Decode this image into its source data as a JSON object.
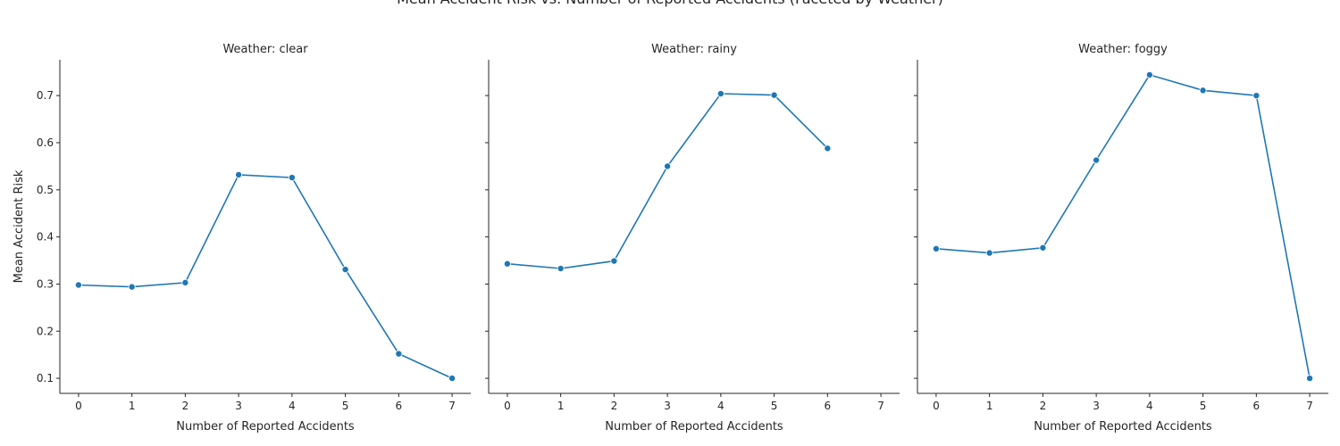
{
  "chart_data": {
    "type": "line",
    "title": "Mean Accident Risk vs. Number of Reported Accidents (Faceted by Weather)",
    "xlabel": "Number of Reported Accidents",
    "ylabel": "Mean Accident Risk",
    "xlim": [
      -0.35,
      7.35
    ],
    "ylim": [
      0.068,
      0.776
    ],
    "x_ticks": [
      0,
      1,
      2,
      3,
      4,
      5,
      6,
      7
    ],
    "y_ticks": [
      0.1,
      0.2,
      0.3,
      0.4,
      0.5,
      0.6,
      0.7
    ],
    "color": "#1f77b4",
    "grid": false,
    "facets": [
      {
        "title": "Weather: clear",
        "x": [
          0,
          1,
          2,
          3,
          4,
          5,
          6,
          7
        ],
        "y": [
          0.298,
          0.294,
          0.303,
          0.532,
          0.526,
          0.331,
          0.152,
          0.1
        ]
      },
      {
        "title": "Weather: rainy",
        "x": [
          0,
          1,
          2,
          3,
          4,
          5,
          6
        ],
        "y": [
          0.343,
          0.333,
          0.349,
          0.55,
          0.704,
          0.701,
          0.588
        ]
      },
      {
        "title": "Weather: foggy",
        "x": [
          0,
          1,
          2,
          3,
          4,
          5,
          6,
          7
        ],
        "y": [
          0.375,
          0.366,
          0.377,
          0.563,
          0.744,
          0.711,
          0.7,
          0.1
        ]
      }
    ]
  }
}
